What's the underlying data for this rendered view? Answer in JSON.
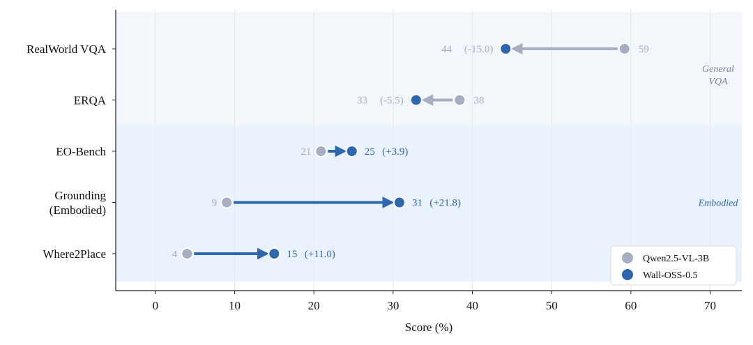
{
  "chart_data": {
    "type": "dumbbell",
    "xlabel": "Score (%)",
    "xlim": [
      -5,
      74
    ],
    "xticks": [
      0,
      10,
      20,
      30,
      40,
      50,
      60,
      70
    ],
    "grid": "vertical",
    "legend_position": "bottom-right",
    "colors": {
      "baseline": "#a5afc1",
      "model": "#2d68ae",
      "band_general": "#f3f7fc",
      "band_embodied": "#eaf2fd",
      "grid": "#e4e8ee",
      "general_label": "#7d879a",
      "embodied_label": "#2d68ae"
    },
    "series": [
      {
        "name": "Qwen2.5-VL-3B",
        "values": [
          59.2,
          38.4,
          20.9,
          9.0,
          4.0
        ]
      },
      {
        "name": "Wall-OSS-0.5",
        "values": [
          44.2,
          32.9,
          24.8,
          30.8,
          15.0
        ]
      }
    ],
    "categories": [
      {
        "label_lines": [
          "RealWorld VQA"
        ],
        "group": "general",
        "base_label": "59",
        "model_label": "44",
        "delta_label": "(-15.0)"
      },
      {
        "label_lines": [
          "ERQA"
        ],
        "group": "general",
        "base_label": "38",
        "model_label": "33",
        "delta_label": "(-5.5)"
      },
      {
        "label_lines": [
          "EO-Bench"
        ],
        "group": "embodied",
        "base_label": "21",
        "model_label": "25",
        "delta_label": "(+3.9)"
      },
      {
        "label_lines": [
          "Grounding",
          "(Embodied)"
        ],
        "group": "embodied",
        "base_label": "9",
        "model_label": "31",
        "delta_label": "(+21.8)"
      },
      {
        "label_lines": [
          "Where2Place"
        ],
        "group": "embodied",
        "base_label": "4",
        "model_label": "15",
        "delta_label": "(+11.0)"
      }
    ],
    "groups": [
      {
        "id": "general",
        "label_lines": [
          "General",
          "VQA"
        ]
      },
      {
        "id": "embodied",
        "label_lines": [
          "Embodied"
        ]
      }
    ]
  }
}
